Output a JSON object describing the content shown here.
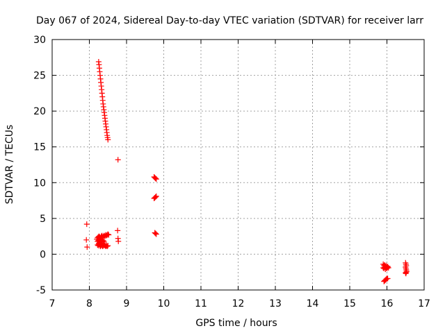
{
  "chart_data": {
    "type": "scatter",
    "title": "Day 067 of 2024, Sidereal Day-to-day VTEC variation (SDTVAR) for receiver larr",
    "xlabel": "GPS time / hours",
    "ylabel": "SDTVAR / TECUs",
    "xlim": [
      7,
      17
    ],
    "ylim": [
      -5,
      30
    ],
    "xticks": [
      7,
      8,
      9,
      10,
      11,
      12,
      13,
      14,
      15,
      16,
      17
    ],
    "yticks": [
      -5,
      0,
      5,
      10,
      15,
      20,
      25,
      30
    ],
    "grid": true,
    "marker": "+",
    "color": "#ff0000",
    "series": [
      {
        "name": "SDTVAR",
        "x": [
          8.25,
          8.26,
          8.27,
          8.28,
          8.29,
          8.3,
          8.31,
          8.32,
          8.33,
          8.34,
          8.35,
          8.36,
          8.37,
          8.38,
          8.39,
          8.4,
          8.41,
          8.42,
          8.43,
          8.44,
          8.45,
          8.46,
          8.47,
          8.48,
          8.49,
          8.5,
          8.77,
          7.93,
          7.92,
          7.94,
          8.2,
          8.22,
          8.24,
          8.26,
          8.28,
          8.3,
          8.32,
          8.34,
          8.36,
          8.38,
          8.4,
          8.42,
          8.44,
          8.46,
          8.48,
          8.5,
          8.52,
          8.22,
          8.24,
          8.26,
          8.28,
          8.3,
          8.32,
          8.34,
          8.36,
          8.38,
          8.4,
          8.22,
          8.24,
          8.26,
          8.28,
          8.3,
          8.32,
          8.34,
          8.36,
          8.38,
          8.4,
          8.42,
          8.44,
          8.46,
          8.48,
          8.5,
          8.25,
          8.27,
          8.29,
          8.31,
          8.33,
          8.76,
          8.77,
          8.78,
          9.74,
          9.76,
          9.78,
          9.8,
          9.74,
          9.76,
          9.78,
          9.8,
          9.76,
          9.78,
          9.8,
          15.9,
          15.92,
          15.94,
          15.96,
          15.98,
          16.0,
          16.02,
          15.9,
          15.92,
          15.94,
          15.96,
          15.98,
          16.0,
          16.02,
          16.04,
          15.92,
          15.94,
          15.96,
          15.98,
          16.0,
          16.02,
          16.5,
          16.51,
          16.52,
          16.5,
          16.51,
          16.52,
          16.53,
          16.5,
          16.51,
          16.52
        ],
        "y": [
          26.9,
          26.5,
          26.0,
          25.5,
          25.0,
          24.5,
          24.0,
          23.5,
          23.0,
          22.5,
          22.0,
          21.5,
          21.0,
          20.6,
          20.2,
          19.8,
          19.4,
          19.0,
          18.6,
          18.2,
          17.8,
          17.4,
          17.0,
          16.6,
          16.3,
          16.0,
          13.2,
          4.2,
          2.0,
          1.0,
          2.1,
          2.3,
          2.4,
          2.5,
          2.4,
          2.3,
          2.5,
          2.6,
          2.4,
          2.5,
          2.6,
          2.5,
          2.7,
          2.6,
          2.7,
          2.8,
          2.7,
          1.8,
          1.9,
          2.0,
          1.8,
          1.7,
          1.9,
          2.0,
          1.8,
          1.9,
          1.7,
          1.3,
          1.2,
          1.4,
          1.2,
          1.1,
          1.3,
          1.2,
          1.1,
          1.2,
          1.3,
          1.2,
          1.1,
          1.2,
          1.1,
          1.2,
          1.5,
          1.6,
          1.5,
          1.4,
          1.5,
          3.3,
          2.2,
          1.8,
          10.8,
          10.7,
          10.6,
          10.5,
          7.8,
          7.9,
          8.0,
          8.1,
          3.0,
          2.9,
          2.8,
          -1.4,
          -1.6,
          -1.5,
          -1.7,
          -1.6,
          -1.8,
          -1.7,
          -1.9,
          -2.0,
          -1.8,
          -2.1,
          -1.9,
          -2.0,
          -1.8,
          -1.9,
          -3.8,
          -3.7,
          -3.6,
          -3.5,
          -3.4,
          -3.4,
          -1.2,
          -1.4,
          -1.6,
          -1.8,
          -2.0,
          -2.2,
          -2.4,
          -2.6,
          -2.7,
          -2.5
        ]
      }
    ]
  }
}
